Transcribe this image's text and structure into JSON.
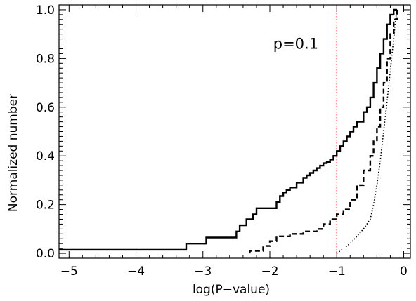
{
  "chart_data": {
    "type": "line",
    "title": "",
    "xlabel": "log(P−value)",
    "ylabel": "Normalized number",
    "xlim": [
      -5.15,
      0.1
    ],
    "ylim": [
      -0.02,
      1.02
    ],
    "x_ticks": [
      -5,
      -4,
      -3,
      -2,
      -1,
      0
    ],
    "x_tick_labels": [
      "−5",
      "−4",
      "−3",
      "−2",
      "−1",
      "0"
    ],
    "y_ticks": [
      0.0,
      0.2,
      0.4,
      0.6,
      0.8,
      1.0
    ],
    "y_tick_labels": [
      "0.0",
      "0.2",
      "0.4",
      "0.6",
      "0.8",
      "1.0"
    ],
    "grid": false,
    "series": [
      {
        "style": "solid",
        "color": "#000000",
        "x": [
          -5.15,
          -3.25,
          -3.25,
          -2.95,
          -2.95,
          -2.5,
          -2.5,
          -2.45,
          -2.45,
          -2.35,
          -2.35,
          -2.25,
          -2.25,
          -2.2,
          -2.2,
          -1.9,
          -1.9,
          -1.85,
          -1.85,
          -1.8,
          -1.8,
          -1.75,
          -1.75,
          -1.7,
          -1.7,
          -1.6,
          -1.6,
          -1.5,
          -1.5,
          -1.45,
          -1.45,
          -1.4,
          -1.4,
          -1.35,
          -1.35,
          -1.3,
          -1.3,
          -1.25,
          -1.25,
          -1.2,
          -1.2,
          -1.15,
          -1.15,
          -1.1,
          -1.1,
          -1.05,
          -1.05,
          -1.0,
          -1.0,
          -0.95,
          -0.95,
          -0.9,
          -0.9,
          -0.85,
          -0.85,
          -0.8,
          -0.8,
          -0.75,
          -0.75,
          -0.7,
          -0.7,
          -0.6,
          -0.6,
          -0.55,
          -0.55,
          -0.5,
          -0.5,
          -0.45,
          -0.45,
          -0.4,
          -0.4,
          -0.35,
          -0.35,
          -0.3,
          -0.3,
          -0.25,
          -0.25,
          -0.2,
          -0.2,
          -0.15,
          -0.15,
          -0.1
        ],
        "y": [
          0.015,
          0.015,
          0.04,
          0.04,
          0.065,
          0.065,
          0.09,
          0.09,
          0.115,
          0.115,
          0.14,
          0.14,
          0.16,
          0.16,
          0.185,
          0.185,
          0.21,
          0.21,
          0.235,
          0.235,
          0.25,
          0.25,
          0.26,
          0.26,
          0.27,
          0.27,
          0.29,
          0.29,
          0.31,
          0.31,
          0.32,
          0.32,
          0.33,
          0.33,
          0.34,
          0.34,
          0.35,
          0.35,
          0.36,
          0.36,
          0.37,
          0.37,
          0.375,
          0.375,
          0.385,
          0.385,
          0.4,
          0.4,
          0.42,
          0.42,
          0.44,
          0.44,
          0.46,
          0.46,
          0.48,
          0.48,
          0.5,
          0.5,
          0.52,
          0.52,
          0.54,
          0.54,
          0.58,
          0.58,
          0.6,
          0.6,
          0.64,
          0.64,
          0.7,
          0.7,
          0.76,
          0.76,
          0.82,
          0.82,
          0.88,
          0.88,
          0.94,
          0.94,
          0.98,
          0.98,
          1.0,
          1.0
        ]
      },
      {
        "style": "dashed",
        "color": "#000000",
        "x": [
          -2.3,
          -2.3,
          -2.1,
          -2.1,
          -2.0,
          -2.0,
          -1.9,
          -1.9,
          -1.7,
          -1.7,
          -1.5,
          -1.5,
          -1.3,
          -1.3,
          -1.2,
          -1.2,
          -1.1,
          -1.1,
          -1.0,
          -1.0,
          -0.9,
          -0.9,
          -0.8,
          -0.8,
          -0.7,
          -0.7,
          -0.6,
          -0.6,
          -0.5,
          -0.5,
          -0.45,
          -0.45,
          -0.4,
          -0.4,
          -0.35,
          -0.35,
          -0.3,
          -0.3,
          -0.25,
          -0.25,
          -0.2,
          -0.2,
          -0.15,
          -0.15,
          -0.1,
          -0.1
        ],
        "y": [
          0.0,
          0.01,
          0.01,
          0.03,
          0.03,
          0.05,
          0.05,
          0.07,
          0.07,
          0.08,
          0.08,
          0.09,
          0.09,
          0.1,
          0.1,
          0.12,
          0.12,
          0.14,
          0.14,
          0.16,
          0.16,
          0.18,
          0.18,
          0.22,
          0.22,
          0.28,
          0.28,
          0.34,
          0.34,
          0.4,
          0.4,
          0.46,
          0.46,
          0.52,
          0.52,
          0.6,
          0.6,
          0.7,
          0.7,
          0.8,
          0.8,
          0.9,
          0.9,
          0.96,
          0.96,
          1.0
        ]
      },
      {
        "style": "dotted",
        "color": "#000000",
        "x": [
          -1.0,
          -0.9,
          -0.8,
          -0.7,
          -0.6,
          -0.5,
          -0.45,
          -0.4,
          -0.35,
          -0.3,
          -0.25,
          -0.2,
          -0.15,
          -0.12,
          -0.1
        ],
        "y": [
          0.0,
          0.02,
          0.04,
          0.07,
          0.1,
          0.14,
          0.2,
          0.28,
          0.38,
          0.5,
          0.62,
          0.75,
          0.88,
          0.96,
          1.0
        ]
      }
    ],
    "reference_line": {
      "x": -1.0,
      "color": "#ff0000",
      "style": "dotted"
    },
    "annotation": {
      "text": "p=0.1",
      "x": -1.95,
      "y": 0.84
    }
  }
}
